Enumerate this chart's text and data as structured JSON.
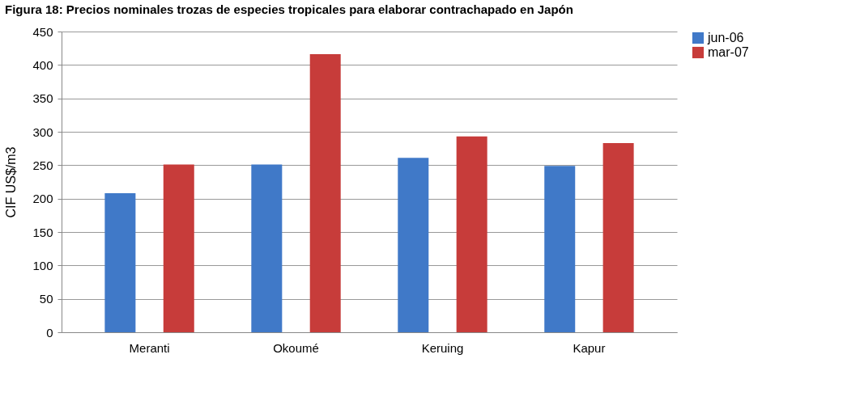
{
  "chart_data": {
    "type": "bar",
    "title": "Figura 18: Precios nominales trozas de especies tropicales para elaborar contrachapado en Japón",
    "ylabel": "CIF  US$/m3",
    "categories": [
      "Meranti",
      "Okoumé",
      "Keruing",
      "Kapur"
    ],
    "series": [
      {
        "name": "jun-06",
        "color": "#4079c8",
        "values": [
          208,
          251,
          261,
          249
        ]
      },
      {
        "name": "mar-07",
        "color": "#c73c3a",
        "values": [
          251,
          416,
          293,
          283
        ]
      }
    ],
    "ylim": [
      0,
      450
    ],
    "yticks": [
      0,
      50,
      100,
      150,
      200,
      250,
      300,
      350,
      400,
      450
    ],
    "grid": "y",
    "legend": "right"
  }
}
